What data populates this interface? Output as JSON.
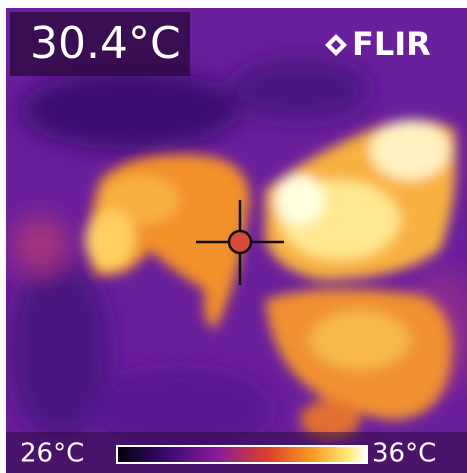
{
  "readout": "30.4°C",
  "brand": "FLIR",
  "scale": {
    "min_label": "26°C",
    "max_label": "36°C"
  }
}
